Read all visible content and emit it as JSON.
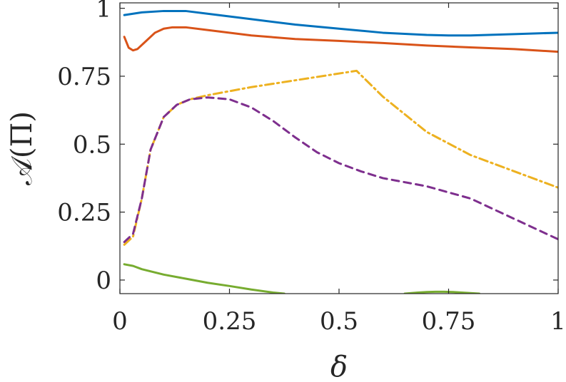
{
  "chart_data": {
    "type": "line",
    "xlabel": "δ",
    "ylabel": "𝒜(Π)",
    "xlim": [
      0,
      1
    ],
    "ylim": [
      -0.05,
      1.02
    ],
    "xticks": [
      0,
      0.25,
      0.5,
      0.75,
      1
    ],
    "xtick_labels": [
      "0",
      "0.25",
      "0.5",
      "0.75",
      "1"
    ],
    "yticks": [
      0,
      0.25,
      0.5,
      0.75,
      1
    ],
    "ytick_labels": [
      "0",
      "0.25",
      "0.5",
      "0.75",
      "1"
    ],
    "grid": false,
    "series": [
      {
        "color": "#0072BD",
        "dash": "solid",
        "x": [
          0.01,
          0.05,
          0.1,
          0.15,
          0.2,
          0.3,
          0.4,
          0.5,
          0.6,
          0.7,
          0.75,
          0.8,
          0.9,
          1.0
        ],
        "y": [
          0.975,
          0.985,
          0.99,
          0.99,
          0.98,
          0.96,
          0.94,
          0.925,
          0.91,
          0.902,
          0.9,
          0.9,
          0.905,
          0.91
        ]
      },
      {
        "color": "#D95319",
        "dash": "solid",
        "x": [
          0.01,
          0.02,
          0.03,
          0.04,
          0.06,
          0.08,
          0.1,
          0.12,
          0.15,
          0.2,
          0.3,
          0.4,
          0.5,
          0.6,
          0.7,
          0.8,
          0.9,
          1.0
        ],
        "y": [
          0.895,
          0.855,
          0.845,
          0.85,
          0.88,
          0.91,
          0.925,
          0.93,
          0.93,
          0.92,
          0.9,
          0.887,
          0.88,
          0.872,
          0.863,
          0.856,
          0.85,
          0.84
        ]
      },
      {
        "color": "#EDB120",
        "dash": "dash-dot",
        "x": [
          0.01,
          0.03,
          0.05,
          0.07,
          0.1,
          0.13,
          0.16,
          0.2,
          0.3,
          0.4,
          0.54,
          0.6,
          0.7,
          0.8,
          0.9,
          1.0
        ],
        "y": [
          0.13,
          0.16,
          0.3,
          0.48,
          0.6,
          0.645,
          0.665,
          0.68,
          0.71,
          0.735,
          0.77,
          0.675,
          0.545,
          0.46,
          0.4,
          0.34
        ]
      },
      {
        "color": "#7E2F8E",
        "dash": "dashed",
        "x": [
          0.01,
          0.03,
          0.05,
          0.07,
          0.1,
          0.13,
          0.16,
          0.2,
          0.25,
          0.3,
          0.35,
          0.4,
          0.45,
          0.5,
          0.55,
          0.6,
          0.7,
          0.8,
          0.9,
          1.0
        ],
        "y": [
          0.14,
          0.17,
          0.3,
          0.48,
          0.6,
          0.645,
          0.665,
          0.672,
          0.665,
          0.635,
          0.585,
          0.525,
          0.47,
          0.43,
          0.4,
          0.375,
          0.345,
          0.3,
          0.225,
          0.15
        ]
      },
      {
        "color": "#77AC30",
        "dash": "solid",
        "x": [
          0.01,
          0.03,
          0.05,
          0.1,
          0.15,
          0.2,
          0.25,
          0.3,
          0.35,
          0.375
        ],
        "y": [
          0.058,
          0.052,
          0.04,
          0.02,
          0.005,
          -0.01,
          -0.022,
          -0.035,
          -0.046,
          -0.05
        ]
      },
      {
        "color": "#77AC30",
        "dash": "solid",
        "x": [
          0.65,
          0.68,
          0.7,
          0.72,
          0.74,
          0.76,
          0.78,
          0.8,
          0.82
        ],
        "y": [
          -0.05,
          -0.046,
          -0.044,
          -0.043,
          -0.043,
          -0.044,
          -0.046,
          -0.048,
          -0.05
        ]
      }
    ]
  }
}
